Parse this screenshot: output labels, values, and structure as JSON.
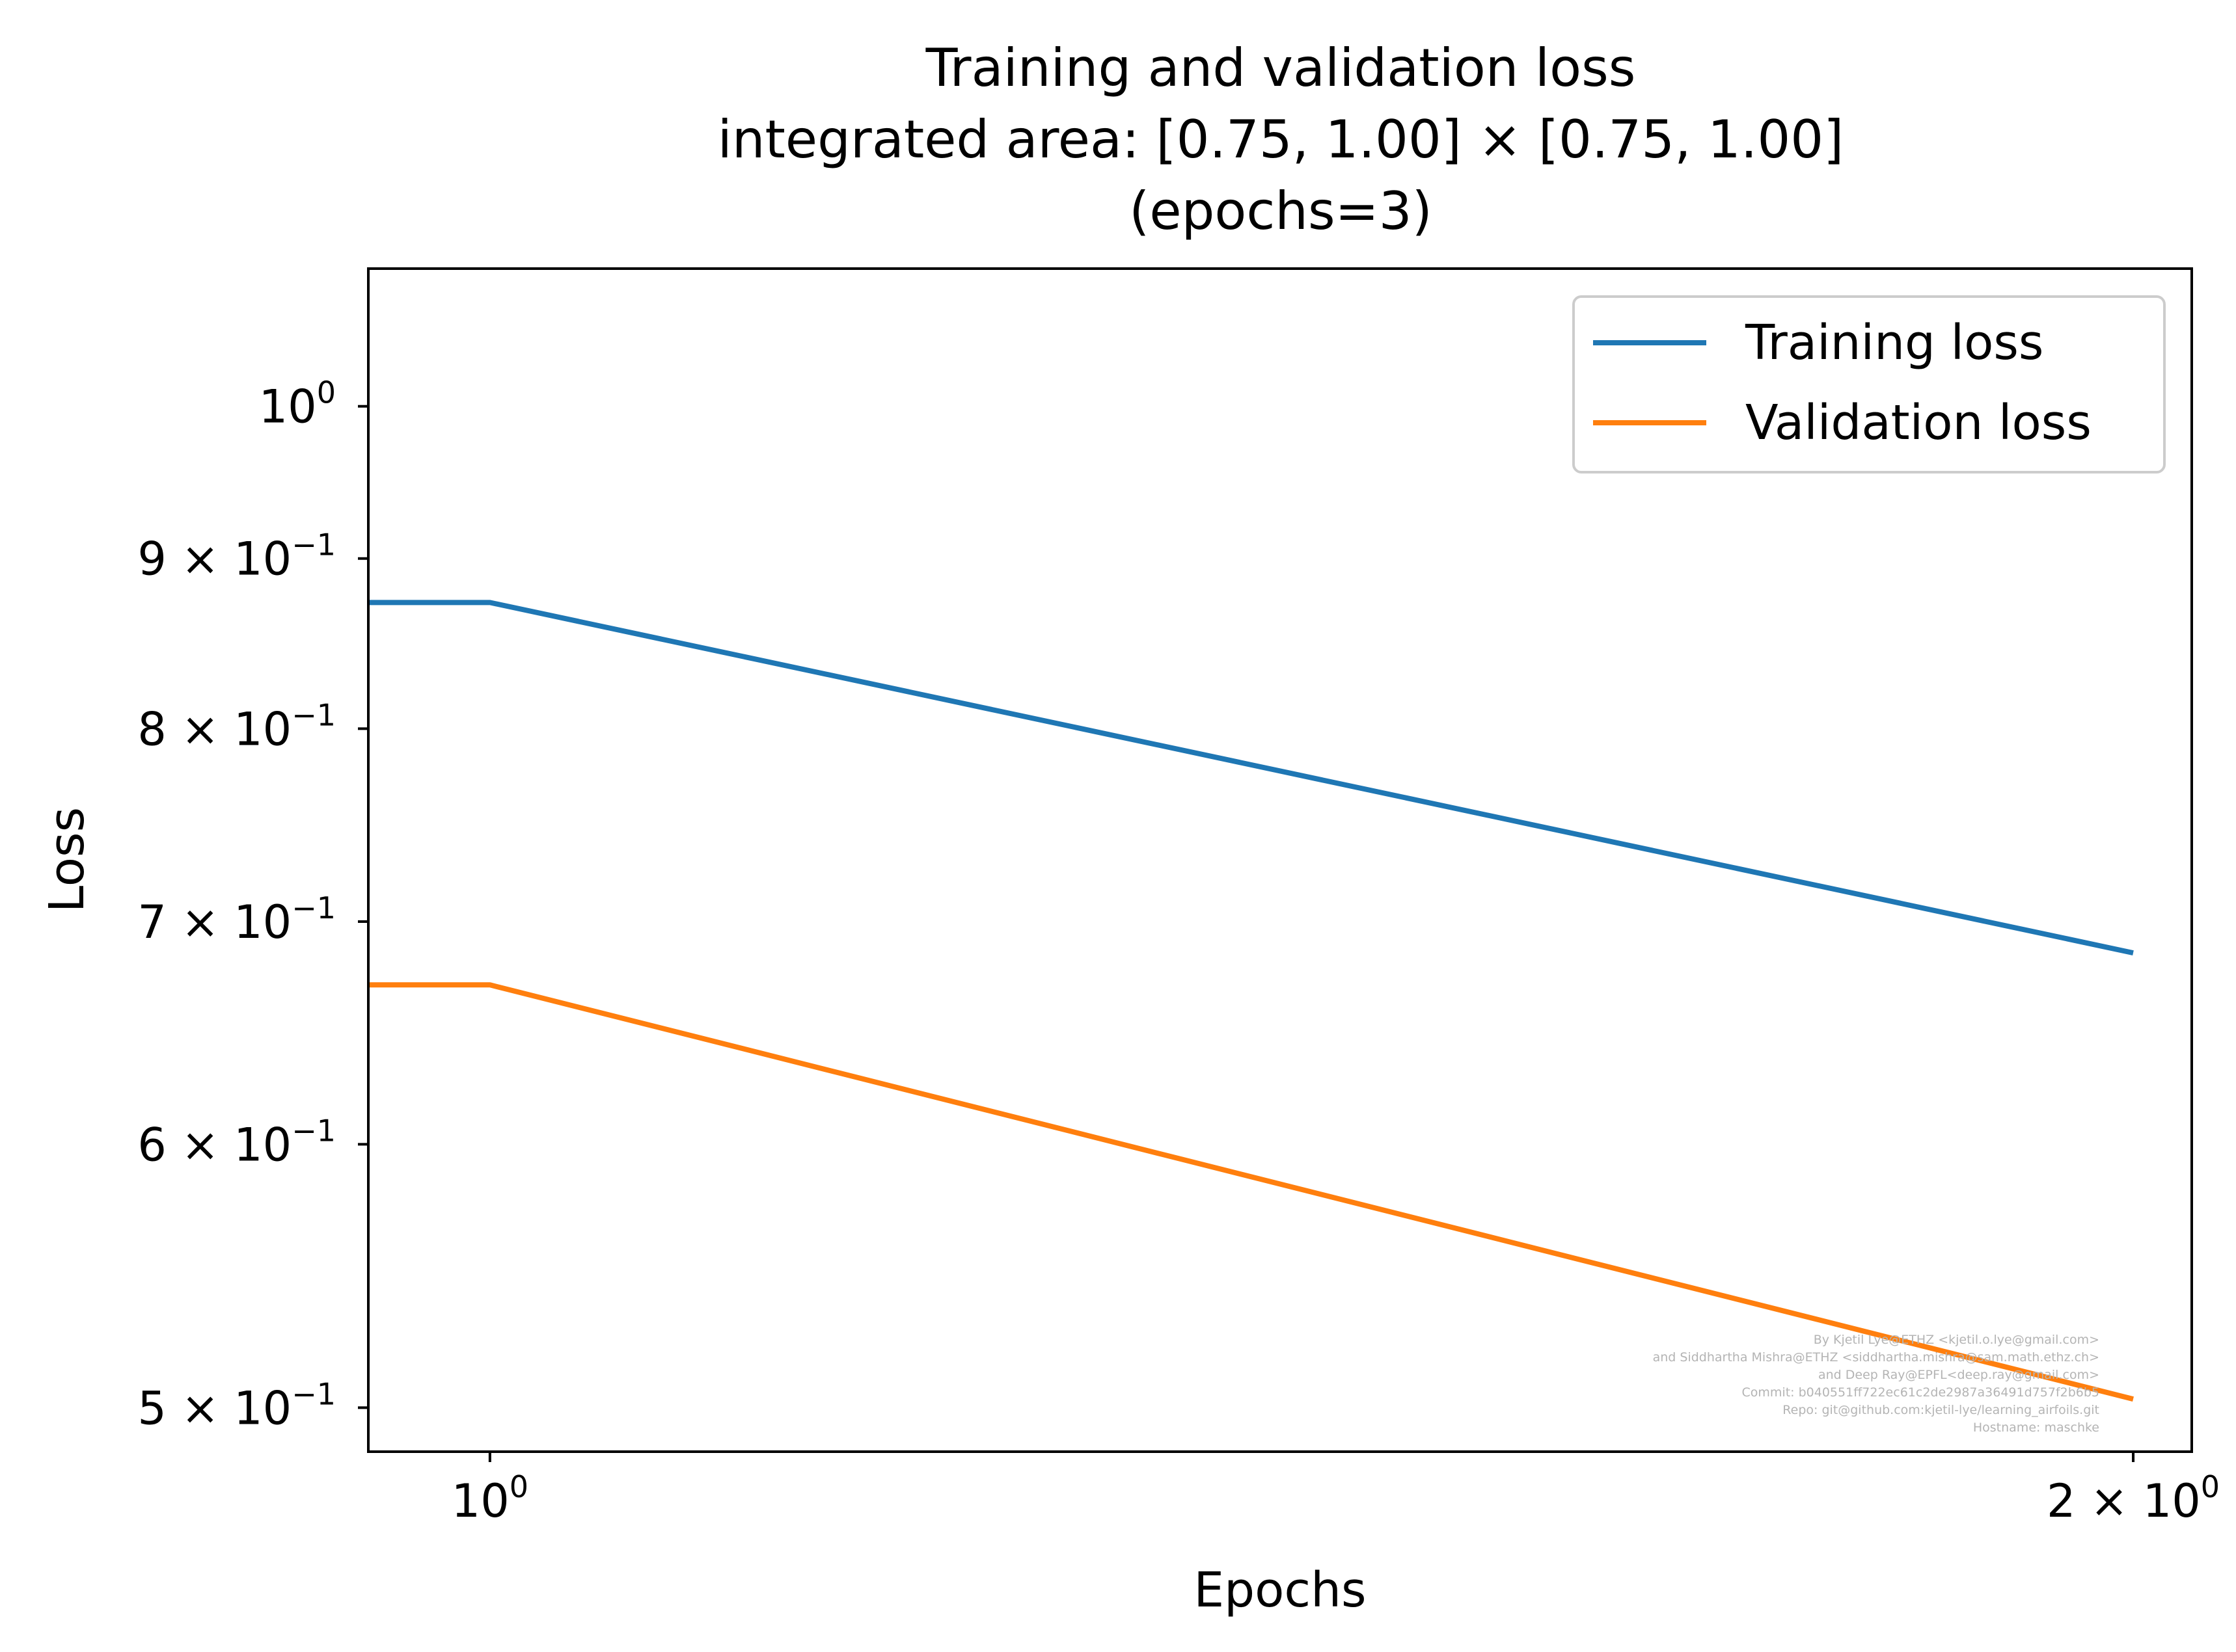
{
  "chart_data": {
    "type": "line",
    "title_lines": [
      "Training and validation loss",
      "integrated area: [0.75, 1.00] × [0.75, 1.00]",
      "(epochs=3)"
    ],
    "xlabel": "Epochs",
    "ylabel": "Loss",
    "xscale": "log",
    "yscale": "log",
    "xlim": [
      0.95,
      2.05
    ],
    "ylim": [
      0.485,
      1.1
    ],
    "x_ticks": [
      {
        "value": 1,
        "base": "10",
        "exp": "0"
      },
      {
        "value": 2,
        "base": "2 × 10",
        "exp": "0"
      }
    ],
    "y_ticks": [
      {
        "value": 1.0,
        "base": "10",
        "exp": "0"
      },
      {
        "value": 0.9,
        "base": "9 × 10",
        "exp": "−1"
      },
      {
        "value": 0.8,
        "base": "8 × 10",
        "exp": "−1"
      },
      {
        "value": 0.7,
        "base": "7 × 10",
        "exp": "−1"
      },
      {
        "value": 0.6,
        "base": "6 × 10",
        "exp": "−1"
      },
      {
        "value": 0.5,
        "base": "5 × 10",
        "exp": "−1"
      }
    ],
    "series": [
      {
        "name": "Training loss",
        "color": "#1f77b4",
        "x": [
          0.95,
          1,
          2
        ],
        "y": [
          0.873,
          0.873,
          0.685
        ]
      },
      {
        "name": "Validation loss",
        "color": "#ff7f0e",
        "x": [
          0.95,
          1,
          2
        ],
        "y": [
          0.67,
          0.67,
          0.503
        ]
      }
    ],
    "legend_position": "top-right",
    "grid": false,
    "watermark_lines": [
      "By Kjetil Lye@ETHZ <kjetil.o.lye@gmail.com>",
      "and Siddhartha Mishra@ETHZ <siddhartha.mishra@sam.math.ethz.ch>",
      "and Deep Ray@EPFL<deep.ray@gmail.com>",
      "Commit: b040551ff722ec61c2de2987a36491d757f2b6b5",
      "Repo: git@github.com:kjetil-lye/learning_airfoils.git",
      "Hostname: maschke"
    ]
  }
}
